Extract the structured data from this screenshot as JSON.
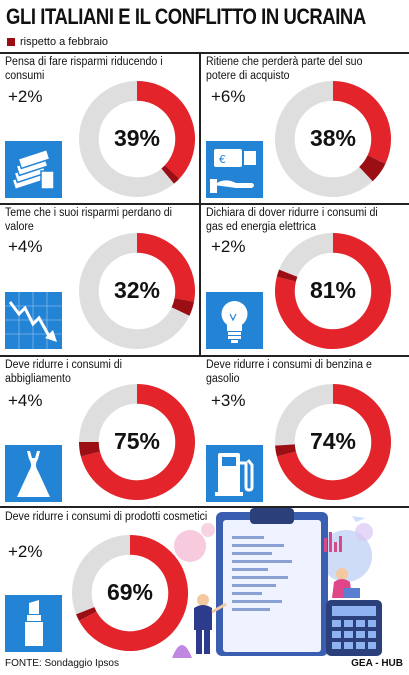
{
  "title": "GLI ITALIANI E IL CONFLITTO IN UCRAINA",
  "legend": "rispetto a febbraio",
  "colors": {
    "accent": "#e3242b",
    "dark_red": "#9a0e14",
    "track": "#dedede",
    "icon_bg": "#2384d6"
  },
  "chart_data": [
    {
      "type": "pie",
      "question": "Pensa di fare risparmi riducendo i consumi",
      "value": 39,
      "label": "39%",
      "change": "+2%",
      "change_value": 2,
      "icon": "money-stack-icon"
    },
    {
      "type": "pie",
      "question": "Ritiene che perderà parte del suo potere di acquisto",
      "value": 38,
      "label": "38%",
      "change": "+6%",
      "change_value": 6,
      "icon": "payment-card-hand-icon"
    },
    {
      "type": "pie",
      "question": "Teme che i suoi risparmi perdano di valore",
      "value": 32,
      "label": "32%",
      "change": "+4%",
      "change_value": 4,
      "icon": "falling-chart-icon"
    },
    {
      "type": "pie",
      "question": "Dichiara di dover ridurre i consumi di gas ed energia elettrica",
      "value": 81,
      "label": "81%",
      "change": "+2%",
      "change_value": 2,
      "icon": "light-bulb-icon"
    },
    {
      "type": "pie",
      "question": "Deve ridurre i consumi di abbigliamento",
      "value": 75,
      "label": "75%",
      "change": "+4%",
      "change_value": 4,
      "icon": "dress-icon"
    },
    {
      "type": "pie",
      "question": "Deve ridurre i consumi di benzina e gasolio",
      "value": 74,
      "label": "74%",
      "change": "+3%",
      "change_value": 3,
      "icon": "fuel-pump-icon"
    },
    {
      "type": "pie",
      "question": "Deve ridurre i consumi di prodotti cosmetici",
      "value": 69,
      "label": "69%",
      "change": "+2%",
      "change_value": 2,
      "icon": "lipstick-icon"
    }
  ],
  "footer": {
    "source": "FONTE: Sondaggio Ipsos",
    "credit": "GEA - HUB"
  }
}
